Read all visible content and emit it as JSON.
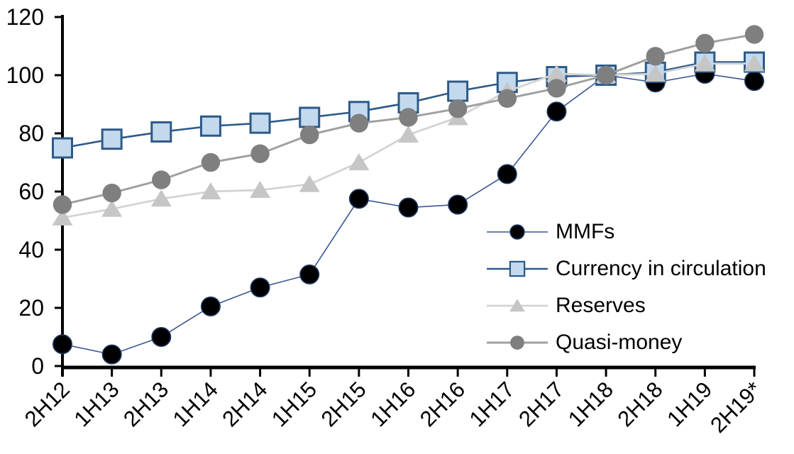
{
  "chart_data": {
    "type": "line",
    "title": "",
    "xlabel": "",
    "ylabel": "",
    "ylim": [
      0,
      120
    ],
    "yticks": [
      0,
      20,
      40,
      60,
      80,
      100,
      120
    ],
    "grid": false,
    "legend_position": "inside-right",
    "categories": [
      "2H12",
      "1H13",
      "2H13",
      "1H14",
      "2H14",
      "1H15",
      "2H15",
      "1H16",
      "2H16",
      "1H17",
      "2H17",
      "1H18",
      "2H18",
      "1H19",
      "2H19*"
    ],
    "series": [
      {
        "name": "MMFs",
        "marker": "circle",
        "marker_fill": "#000000",
        "marker_stroke": "#1F3864",
        "line_color": "#3A5693",
        "line_width": 1.6,
        "values": [
          7.5,
          4,
          10,
          20.5,
          27,
          31.5,
          57.5,
          54.5,
          55.5,
          66,
          87.5,
          100,
          97.5,
          100.5,
          98
        ]
      },
      {
        "name": "Currency in circulation",
        "marker": "square",
        "marker_fill": "#C3D9EE",
        "marker_stroke": "#2D5A87",
        "line_color": "#2D5A87",
        "line_width": 2.6,
        "values": [
          75,
          78,
          80.5,
          82.5,
          83.5,
          85.5,
          87.5,
          90.5,
          94.5,
          97.5,
          99.5,
          100,
          101,
          104.5,
          104.5
        ]
      },
      {
        "name": "Reserves",
        "marker": "triangle",
        "marker_fill": "#C6C6C6",
        "marker_stroke": "none",
        "line_color": "#D3D3D3",
        "line_width": 2.8,
        "values": [
          51,
          54,
          57.5,
          60,
          60.5,
          62.5,
          70,
          79.5,
          85.5,
          94.5,
          100.5,
          100,
          100.5,
          104,
          104
        ]
      },
      {
        "name": "Quasi-money",
        "marker": "circle",
        "marker_fill": "#7F7F7F",
        "marker_stroke": "none",
        "line_color": "#A0A0A0",
        "line_width": 3,
        "values": [
          55.5,
          59.5,
          64,
          70,
          73,
          79.5,
          83.5,
          85.5,
          88.5,
          92,
          95.5,
          100,
          106.5,
          111,
          114
        ]
      }
    ],
    "axis_color": "#000000",
    "tick_label_color": "#000000"
  }
}
